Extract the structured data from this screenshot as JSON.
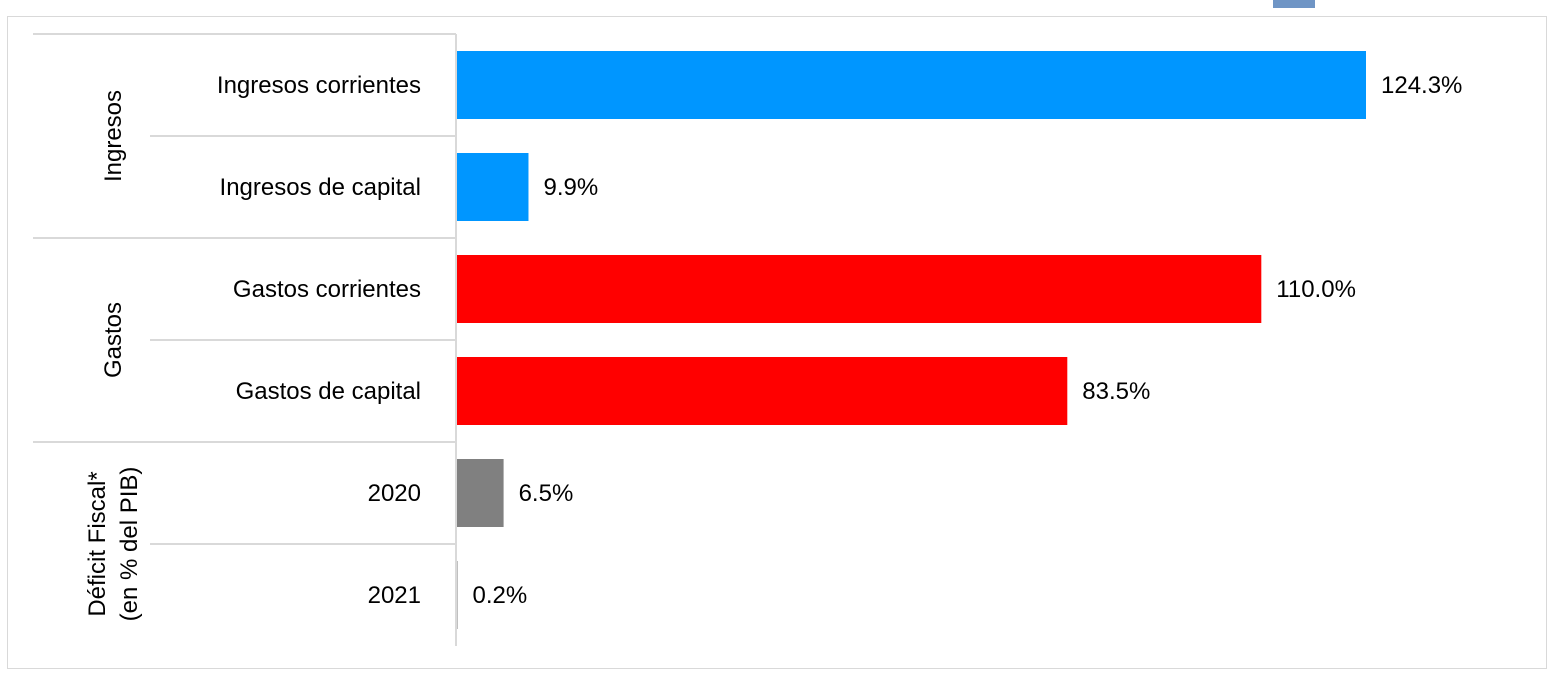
{
  "chart_data": {
    "type": "bar",
    "orientation": "horizontal",
    "title": "",
    "xlabel": "",
    "ylabel": "",
    "xlim": [
      0,
      160
    ],
    "grid": false,
    "legend": "none",
    "groups": [
      {
        "name": "Ingresos",
        "lines": [
          "Ingresos"
        ],
        "color": "#0096ff",
        "categories": [
          "Ingresos corrientes",
          "Ingresos de capital"
        ],
        "values": [
          124.3,
          9.9
        ],
        "labels": [
          "124.3%",
          "9.9%"
        ]
      },
      {
        "name": "Gastos",
        "lines": [
          "Gastos"
        ],
        "color": "#ff0000",
        "categories": [
          "Gastos corrientes",
          "Gastos de capital"
        ],
        "values": [
          110.0,
          83.5
        ],
        "labels": [
          "110.0%",
          "83.5%"
        ]
      },
      {
        "name": "Déficit Fiscal* (en % del PIB)",
        "lines": [
          "Déficit Fiscal*",
          "(en % del PIB)"
        ],
        "color": "#808080",
        "categories": [
          "2020",
          "2021"
        ],
        "values": [
          6.5,
          0.2
        ],
        "labels": [
          "6.5%",
          "0.2%"
        ]
      }
    ]
  },
  "colors": {
    "divider": "#d9d9d9",
    "axis": "#d9d9d9",
    "text": "#000000"
  }
}
